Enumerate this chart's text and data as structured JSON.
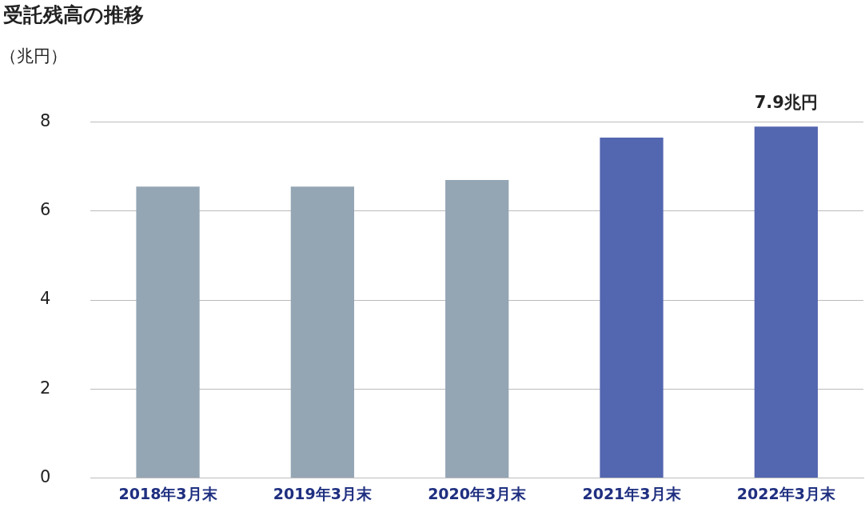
{
  "chart_data": {
    "type": "bar",
    "title": "受託残高の推移",
    "ylabel": "（兆円）",
    "categories": [
      "2018年3月末",
      "2019年3月末",
      "2020年3月末",
      "2021年3月末",
      "2022年3月末"
    ],
    "values": [
      6.55,
      6.55,
      6.7,
      7.65,
      7.9
    ],
    "colors": [
      "#94a5b4",
      "#94a5b4",
      "#94a5b4",
      "#5366b0",
      "#5366b0"
    ],
    "value_labels": [
      null,
      null,
      null,
      null,
      "7.9兆円"
    ],
    "ylim": [
      0,
      8
    ],
    "yticks": [
      0,
      2,
      4,
      6,
      8
    ],
    "grid": "y",
    "legend": false
  }
}
